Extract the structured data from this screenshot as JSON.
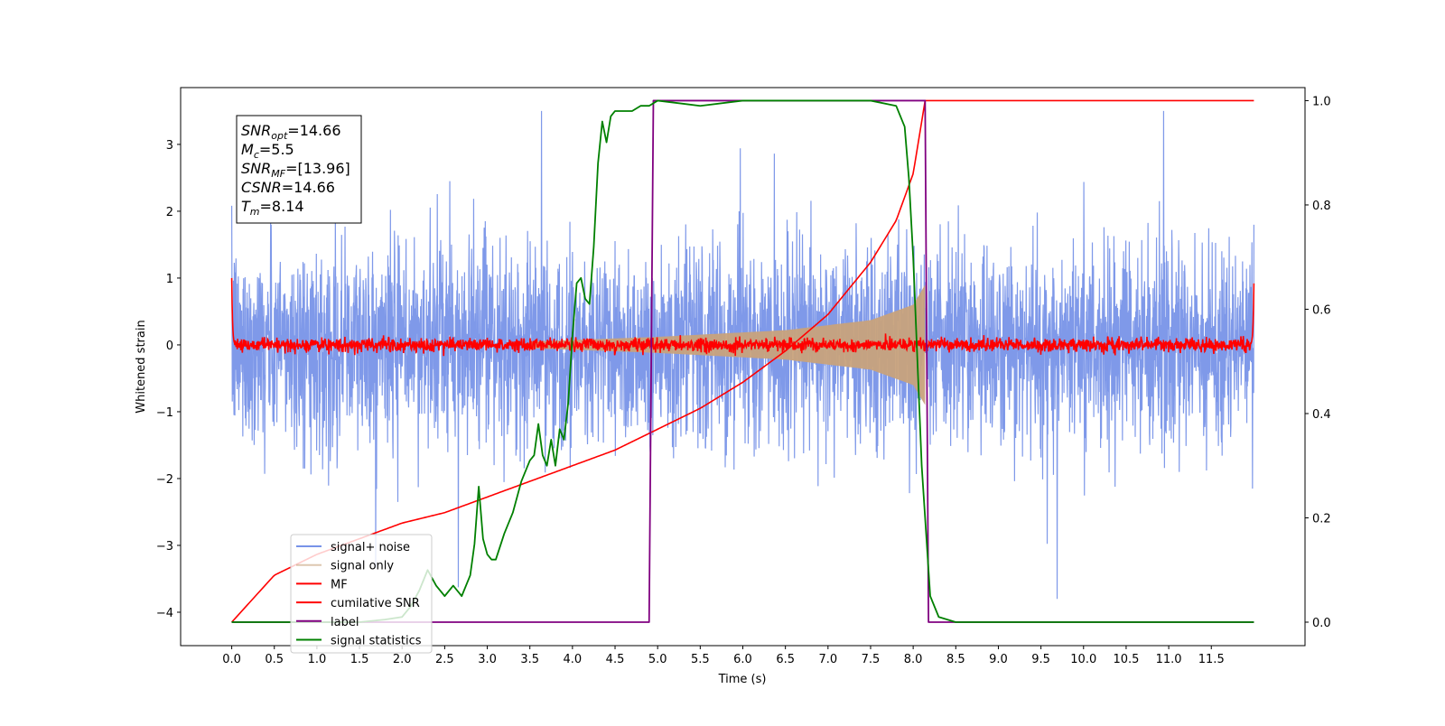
{
  "chart_data": {
    "type": "line",
    "xlabel": "Time (s)",
    "ylabel": "Whitened strain",
    "xlim": [
      -0.6,
      12.6
    ],
    "ylim": [
      -4.5,
      3.85
    ],
    "y2lim": [
      -0.045,
      1.025
    ],
    "x_ticks": [
      "0.0",
      "0.5",
      "1.0",
      "1.5",
      "2.0",
      "2.5",
      "3.0",
      "3.5",
      "4.0",
      "4.5",
      "5.0",
      "5.5",
      "6.0",
      "6.5",
      "7.0",
      "7.5",
      "8.0",
      "8.5",
      "9.0",
      "9.5",
      "10.0",
      "10.5",
      "11.0",
      "11.5"
    ],
    "y_ticks": [
      "3",
      "2",
      "1",
      "0",
      "−1",
      "−2",
      "−3",
      "−4"
    ],
    "y2_ticks": [
      "1.0",
      "0.8",
      "0.6",
      "0.4",
      "0.2",
      "0.0"
    ],
    "grid": false,
    "legend_position": "lower-left",
    "annotation": {
      "snr_opt": {
        "symbol": "SNR",
        "sub": "opt",
        "value": "=14.66"
      },
      "mc": {
        "symbol": "M",
        "sub": "c",
        "value": "=5.5"
      },
      "snr_mf": {
        "symbol": "SNR",
        "sub": "MF",
        "value": "=[13.96]"
      },
      "csnr": {
        "symbol": "CSNR",
        "value": "=14.66"
      },
      "tm": {
        "symbol": "T",
        "sub": "m",
        "value": "=8.14"
      }
    },
    "series": [
      {
        "name": "signal+ noise",
        "color": "#7893e8",
        "axis": "left",
        "kind": "noise",
        "x_range": [
          0.0,
          12.0
        ],
        "amplitude_sd": 0.75,
        "y_range": [
          -3.8,
          3.5
        ]
      },
      {
        "name": "signal only",
        "color": "#c8a27c",
        "axis": "left",
        "kind": "chirp",
        "x_range": [
          3.5,
          8.14
        ],
        "envelope": [
          [
            3.5,
            0.05
          ],
          [
            5.0,
            0.12
          ],
          [
            6.5,
            0.22
          ],
          [
            7.5,
            0.37
          ],
          [
            8.0,
            0.6
          ],
          [
            8.14,
            0.9
          ]
        ]
      },
      {
        "name": "MF",
        "color": "#ff0000",
        "axis": "left",
        "kind": "noise",
        "x_range": [
          0.0,
          12.0
        ],
        "amplitude_sd": 0.05,
        "edge_values": [
          1.0,
          0.92
        ]
      },
      {
        "name": "cumilative SNR",
        "color": "#ff0000",
        "axis": "right",
        "x": [
          0.0,
          0.5,
          1.0,
          1.5,
          2.0,
          2.5,
          3.0,
          3.5,
          4.0,
          4.5,
          5.0,
          5.5,
          6.0,
          6.5,
          7.0,
          7.5,
          7.8,
          8.0,
          8.14,
          12.0
        ],
        "values": [
          0.0,
          0.09,
          0.13,
          0.16,
          0.19,
          0.21,
          0.24,
          0.27,
          0.3,
          0.33,
          0.37,
          0.41,
          0.46,
          0.52,
          0.59,
          0.69,
          0.77,
          0.86,
          1.0,
          1.0
        ]
      },
      {
        "name": "label",
        "color": "#800080",
        "axis": "right",
        "x": [
          0.0,
          4.9,
          4.95,
          8.14,
          8.18,
          12.0
        ],
        "values": [
          0.0,
          0.0,
          1.0,
          1.0,
          0.0,
          0.0
        ]
      },
      {
        "name": "signal statistics",
        "color": "#008000",
        "axis": "right",
        "x": [
          0.0,
          0.5,
          1.0,
          1.5,
          1.8,
          2.0,
          2.1,
          2.2,
          2.3,
          2.4,
          2.5,
          2.6,
          2.7,
          2.8,
          2.85,
          2.9,
          2.95,
          3.0,
          3.05,
          3.1,
          3.2,
          3.3,
          3.4,
          3.5,
          3.55,
          3.6,
          3.65,
          3.7,
          3.75,
          3.8,
          3.85,
          3.9,
          3.95,
          4.0,
          4.05,
          4.1,
          4.15,
          4.2,
          4.25,
          4.3,
          4.35,
          4.4,
          4.45,
          4.5,
          4.55,
          4.6,
          4.7,
          4.8,
          4.9,
          5.0,
          5.5,
          6.0,
          7.0,
          7.5,
          7.8,
          7.9,
          7.95,
          8.0,
          8.1,
          8.2,
          8.3,
          8.5,
          12.0
        ],
        "values": [
          0.0,
          0.0,
          0.0,
          0.0,
          0.005,
          0.01,
          0.03,
          0.06,
          0.1,
          0.07,
          0.05,
          0.07,
          0.05,
          0.09,
          0.15,
          0.26,
          0.16,
          0.13,
          0.12,
          0.12,
          0.17,
          0.21,
          0.27,
          0.31,
          0.32,
          0.38,
          0.32,
          0.3,
          0.35,
          0.3,
          0.37,
          0.35,
          0.42,
          0.55,
          0.65,
          0.66,
          0.62,
          0.61,
          0.72,
          0.88,
          0.96,
          0.92,
          0.97,
          0.98,
          0.98,
          0.98,
          0.98,
          0.99,
          0.99,
          1.0,
          0.99,
          1.0,
          1.0,
          1.0,
          0.99,
          0.95,
          0.85,
          0.7,
          0.3,
          0.05,
          0.01,
          0.0,
          0.0
        ]
      }
    ]
  }
}
